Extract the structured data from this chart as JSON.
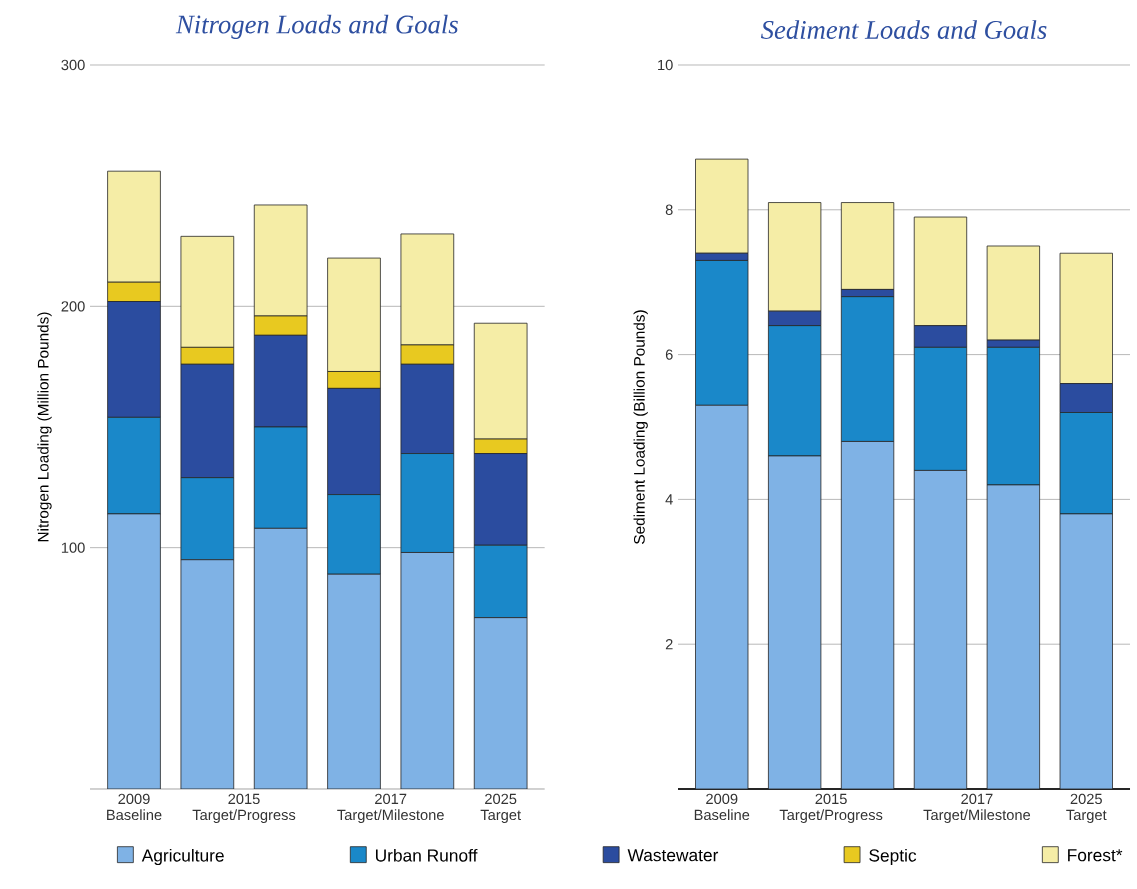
{
  "chart_data": [
    {
      "type": "bar",
      "stacked": true,
      "title": "Nitrogen Loads and Goals",
      "ylabel": "Nitrogen Loading (Million Pounds)",
      "categories": [
        "2009 Baseline",
        "2015 Target/Progress",
        null,
        "2017 Target/Milestone",
        null,
        "2025 Target"
      ],
      "ylim": [
        0,
        300
      ],
      "yticks": [
        100,
        200,
        300
      ],
      "grid": "y",
      "legend": "bottom",
      "series": [
        {
          "name": "Agriculture",
          "color": "#7fb2e5",
          "values": [
            114,
            95,
            108,
            89,
            98,
            71
          ]
        },
        {
          "name": "Urban Runoff",
          "color": "#1a88c9",
          "values": [
            40,
            34,
            42,
            33,
            41,
            30
          ]
        },
        {
          "name": "Wastewater",
          "color": "#2b4c9f",
          "values": [
            48,
            47,
            38,
            44,
            37,
            38
          ]
        },
        {
          "name": "Septic",
          "color": "#e8c920",
          "values": [
            8,
            7,
            8,
            7,
            8,
            6
          ]
        },
        {
          "name": "Forest*",
          "color": "#f5eda6",
          "values": [
            46,
            46,
            46,
            47,
            46,
            48
          ]
        }
      ]
    },
    {
      "type": "bar",
      "stacked": true,
      "title": "Sediment Loads and Goals",
      "ylabel": "Sediment Loading (Billion Pounds)",
      "categories": [
        "2009 Baseline",
        "2015 Target/Progress",
        null,
        "2017 Target/Milestone",
        null,
        "2025 Target"
      ],
      "ylim": [
        0,
        10
      ],
      "yticks": [
        2,
        4,
        6,
        8,
        10
      ],
      "grid": "y",
      "series": [
        {
          "color": "#7fb2e5",
          "values": [
            5.3,
            4.6,
            4.8,
            4.4,
            4.2,
            3.8
          ]
        },
        {
          "color": "#1a88c9",
          "values": [
            2.0,
            1.8,
            2.0,
            1.7,
            1.9,
            1.4
          ]
        },
        {
          "color": "#2b4c9f",
          "values": [
            0.1,
            0.2,
            0.1,
            0.3,
            0.1,
            0.4
          ]
        },
        {
          "color": "#f5eda6",
          "values": [
            1.3,
            1.5,
            1.2,
            1.5,
            1.3,
            1.8
          ]
        }
      ]
    }
  ]
}
